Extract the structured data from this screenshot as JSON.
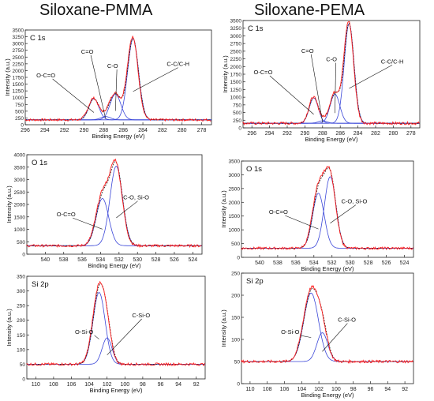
{
  "columns": [
    {
      "title": "Siloxane-PMMA"
    },
    {
      "title": "Siloxane-PEMA"
    }
  ],
  "colors": {
    "experimental": "#ff2020",
    "envelope": "#111111",
    "component": "#3a46d8"
  },
  "chart_data": [
    {
      "type": "line",
      "column": 0,
      "row": 0,
      "panel_label": "C 1s",
      "xlabel": "Binding Energy (eV)",
      "ylabel": "Intensity (a.u.)",
      "xlim": [
        296,
        277
      ],
      "ylim": [
        0,
        3500
      ],
      "xticks": [
        296,
        294,
        292,
        290,
        288,
        286,
        284,
        282,
        280,
        278
      ],
      "yticks": [
        0,
        250,
        500,
        750,
        1000,
        1250,
        1500,
        1750,
        2000,
        2250,
        2500,
        2750,
        3000,
        3250,
        3500
      ],
      "baseline": 180,
      "components": [
        {
          "label": "O-C=O",
          "center": 289.0,
          "fwhm": 1.2,
          "height": 780
        },
        {
          "label": "C=O",
          "center": 287.8,
          "fwhm": 1.2,
          "height": 120
        },
        {
          "label": "C-O",
          "center": 286.8,
          "fwhm": 1.3,
          "height": 950
        },
        {
          "label": "C-C/C-H",
          "center": 285.0,
          "fwhm": 1.3,
          "height": 3000
        }
      ]
    },
    {
      "type": "line",
      "column": 1,
      "row": 0,
      "panel_label": "C 1s",
      "xlabel": "Binding Energy (eV)",
      "ylabel": "Intensity (a.u.)",
      "xlim": [
        297,
        277
      ],
      "ylim": [
        0,
        3500
      ],
      "xticks": [
        296,
        294,
        292,
        290,
        288,
        286,
        284,
        282,
        280,
        278
      ],
      "yticks": [
        0,
        250,
        500,
        750,
        1000,
        1250,
        1500,
        1750,
        2000,
        2250,
        2500,
        2750,
        3000,
        3250,
        3500
      ],
      "baseline": 150,
      "components": [
        {
          "label": "O-C=O",
          "center": 289.0,
          "fwhm": 1.2,
          "height": 830
        },
        {
          "label": "C=O",
          "center": 288.0,
          "fwhm": 1.2,
          "height": 80
        },
        {
          "label": "C-O",
          "center": 286.6,
          "fwhm": 1.3,
          "height": 950
        },
        {
          "label": "C-C/C-H",
          "center": 285.0,
          "fwhm": 1.3,
          "height": 3250
        }
      ]
    },
    {
      "type": "line",
      "column": 0,
      "row": 1,
      "panel_label": "O 1s",
      "xlabel": "Binding Energy (eV)",
      "ylabel": "Intensity (a.u.)",
      "xlim": [
        542,
        523
      ],
      "ylim": [
        0,
        4000
      ],
      "xticks": [
        540,
        538,
        536,
        534,
        532,
        530,
        528,
        526,
        524
      ],
      "yticks": [
        0,
        500,
        1000,
        1500,
        2000,
        2500,
        3000,
        3500,
        4000
      ],
      "baseline": 340,
      "components": [
        {
          "label": "O-C=O",
          "center": 533.8,
          "fwhm": 1.6,
          "height": 1900
        },
        {
          "label": "C-O, Si-O",
          "center": 532.3,
          "fwhm": 1.6,
          "height": 3200
        }
      ]
    },
    {
      "type": "line",
      "column": 1,
      "row": 1,
      "panel_label": "O 1s",
      "xlabel": "Binding Energy (eV)",
      "ylabel": "Intensity (a.u.)",
      "xlim": [
        542,
        523
      ],
      "ylim": [
        0,
        3500
      ],
      "xticks": [
        540,
        538,
        536,
        534,
        532,
        530,
        528,
        526,
        524
      ],
      "yticks": [
        0,
        500,
        1000,
        1500,
        2000,
        2500,
        3000,
        3500
      ],
      "baseline": 330,
      "components": [
        {
          "label": "O-C=O",
          "center": 533.5,
          "fwhm": 1.5,
          "height": 2000
        },
        {
          "label": "C-O, Si-O",
          "center": 532.2,
          "fwhm": 1.5,
          "height": 2600
        }
      ]
    },
    {
      "type": "line",
      "column": 0,
      "row": 2,
      "panel_label": "Si 2p",
      "xlabel": "Binding Energy (eV)",
      "ylabel": "Intensity (a.u.)",
      "xlim": [
        111,
        91
      ],
      "ylim": [
        0,
        350
      ],
      "xticks": [
        110,
        108,
        106,
        104,
        102,
        100,
        98,
        96,
        94,
        92
      ],
      "yticks": [
        0,
        50,
        100,
        150,
        200,
        250,
        300,
        350
      ],
      "baseline": 50,
      "components": [
        {
          "label": "O-Si-O",
          "center": 102.9,
          "fwhm": 1.6,
          "height": 245
        },
        {
          "label": "C-Si-O",
          "center": 102.0,
          "fwhm": 1.3,
          "height": 90
        }
      ]
    },
    {
      "type": "line",
      "column": 1,
      "row": 2,
      "panel_label": "Si 2p",
      "xlabel": "Binding Energy (eV)",
      "ylabel": "Intensity (a.u.)",
      "xlim": [
        111,
        91
      ],
      "ylim": [
        0,
        250
      ],
      "xticks": [
        110,
        108,
        106,
        104,
        102,
        100,
        98,
        96,
        94,
        92
      ],
      "yticks": [
        0,
        50,
        100,
        150,
        200,
        250
      ],
      "baseline": 50,
      "components": [
        {
          "label": "O-Si-O",
          "center": 102.9,
          "fwhm": 2.0,
          "height": 155
        },
        {
          "label": "C-Si-O",
          "center": 101.6,
          "fwhm": 1.5,
          "height": 65
        }
      ]
    }
  ]
}
